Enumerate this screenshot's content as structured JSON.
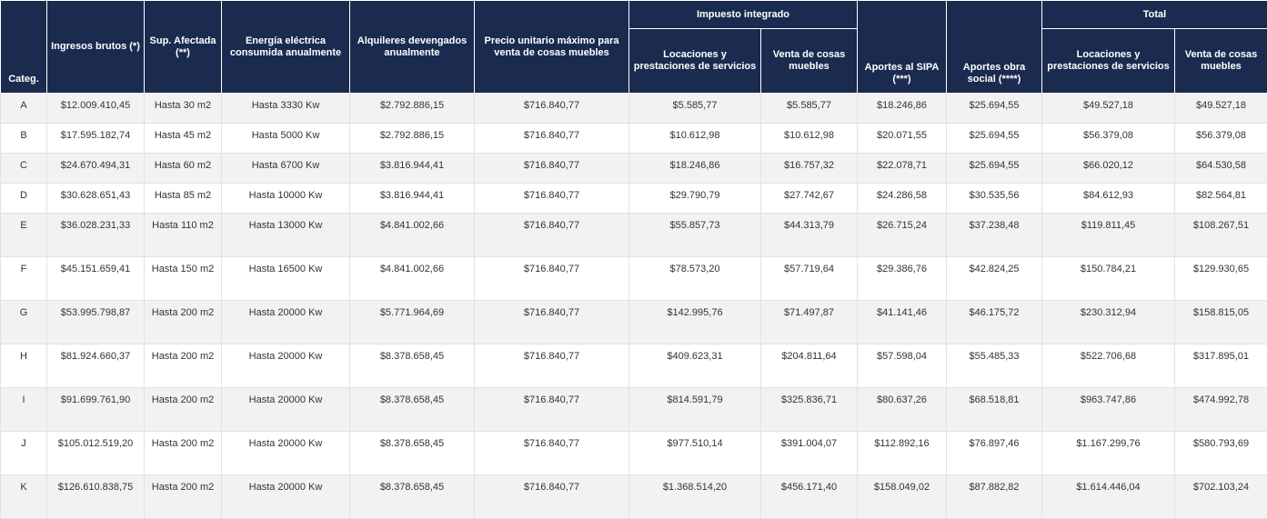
{
  "headers": {
    "categ": "Categ.",
    "ingresos": "Ingresos brutos (*)",
    "superficie": "Sup. Afectada (**)",
    "energia": "Energía eléctrica consumida anualmente",
    "alquileres": "Alquileres devengados anualmente",
    "precio": "Precio unitario máximo para venta de cosas muebles",
    "impuesto_group": "Impuesto integrado",
    "imp_locaciones": "Locaciones y prestaciones de servicios",
    "imp_venta": "Venta de cosas muebles",
    "sipa": "Aportes al SIPA (***)",
    "obra_social": "Aportes obra social (****)",
    "total_group": "Total",
    "total_locaciones": "Locaciones y prestaciones de servicios",
    "total_venta": "Venta de cosas muebles"
  },
  "rows": [
    {
      "cat": "A",
      "ingresos": "$12.009.410,45",
      "sup": "Hasta 30 m2",
      "energia": "Hasta 3330 Kw",
      "alquileres": "$2.792.886,15",
      "precio": "$716.840,77",
      "imp_loc": "$5.585,77",
      "imp_venta": "$5.585,77",
      "sipa": "$18.246,86",
      "obra": "$25.694,55",
      "tot_loc": "$49.527,18",
      "tot_venta": "$49.527,18"
    },
    {
      "cat": "B",
      "ingresos": "$17.595.182,74",
      "sup": "Hasta 45 m2",
      "energia": "Hasta 5000 Kw",
      "alquileres": "$2.792.886,15",
      "precio": "$716.840,77",
      "imp_loc": "$10.612,98",
      "imp_venta": "$10.612,98",
      "sipa": "$20.071,55",
      "obra": "$25.694,55",
      "tot_loc": "$56.379,08",
      "tot_venta": "$56.379,08"
    },
    {
      "cat": "C",
      "ingresos": "$24.670.494,31",
      "sup": "Hasta 60 m2",
      "energia": "Hasta 6700 Kw",
      "alquileres": "$3.816.944,41",
      "precio": "$716.840,77",
      "imp_loc": "$18.246,86",
      "imp_venta": "$16.757,32",
      "sipa": "$22.078,71",
      "obra": "$25.694,55",
      "tot_loc": "$66.020,12",
      "tot_venta": "$64.530,58"
    },
    {
      "cat": "D",
      "ingresos": "$30.628.651,43",
      "sup": "Hasta 85 m2",
      "energia": "Hasta 10000 Kw",
      "alquileres": "$3.816.944,41",
      "precio": "$716.840,77",
      "imp_loc": "$29.790,79",
      "imp_venta": "$27.742,67",
      "sipa": "$24.286,58",
      "obra": "$30.535,56",
      "tot_loc": "$84.612,93",
      "tot_venta": "$82.564,81"
    },
    {
      "cat": "E",
      "ingresos": "$36.028.231,33",
      "sup": "Hasta 110 m2",
      "energia": "Hasta 13000 Kw",
      "alquileres": "$4.841.002,66",
      "precio": "$716.840,77",
      "imp_loc": "$55.857,73",
      "imp_venta": "$44.313,79",
      "sipa": "$26.715,24",
      "obra": "$37.238,48",
      "tot_loc": "$119.811,45",
      "tot_venta": "$108.267,51"
    },
    {
      "cat": "F",
      "ingresos": "$45.151.659,41",
      "sup": "Hasta 150 m2",
      "energia": "Hasta 16500 Kw",
      "alquileres": "$4.841.002,66",
      "precio": "$716.840,77",
      "imp_loc": "$78.573,20",
      "imp_venta": "$57.719,64",
      "sipa": "$29.386,76",
      "obra": "$42.824,25",
      "tot_loc": "$150.784,21",
      "tot_venta": "$129.930,65"
    },
    {
      "cat": "G",
      "ingresos": "$53.995.798,87",
      "sup": "Hasta 200 m2",
      "energia": "Hasta 20000 Kw",
      "alquileres": "$5.771.964,69",
      "precio": "$716.840,77",
      "imp_loc": "$142.995,76",
      "imp_venta": "$71.497,87",
      "sipa": "$41.141,46",
      "obra": "$46.175,72",
      "tot_loc": "$230.312,94",
      "tot_venta": "$158.815,05"
    },
    {
      "cat": "H",
      "ingresos": "$81.924.660,37",
      "sup": "Hasta 200 m2",
      "energia": "Hasta 20000 Kw",
      "alquileres": "$8.378.658,45",
      "precio": "$716.840,77",
      "imp_loc": "$409.623,31",
      "imp_venta": "$204.811,64",
      "sipa": "$57.598,04",
      "obra": "$55.485,33",
      "tot_loc": "$522.706,68",
      "tot_venta": "$317.895,01"
    },
    {
      "cat": "I",
      "ingresos": "$91.699.761,90",
      "sup": "Hasta 200 m2",
      "energia": "Hasta 20000 Kw",
      "alquileres": "$8.378.658,45",
      "precio": "$716.840,77",
      "imp_loc": "$814.591,79",
      "imp_venta": "$325.836,71",
      "sipa": "$80.637,26",
      "obra": "$68.518,81",
      "tot_loc": "$963.747,86",
      "tot_venta": "$474.992,78"
    },
    {
      "cat": "J",
      "ingresos": "$105.012.519,20",
      "sup": "Hasta 200 m2",
      "energia": "Hasta 20000 Kw",
      "alquileres": "$8.378.658,45",
      "precio": "$716.840,77",
      "imp_loc": "$977.510,14",
      "imp_venta": "$391.004,07",
      "sipa": "$112.892,16",
      "obra": "$76.897,46",
      "tot_loc": "$1.167.299,76",
      "tot_venta": "$580.793,69"
    },
    {
      "cat": "K",
      "ingresos": "$126.610.838,75",
      "sup": "Hasta 200 m2",
      "energia": "Hasta 20000 Kw",
      "alquileres": "$8.378.658,45",
      "precio": "$716.840,77",
      "imp_loc": "$1.368.514,20",
      "imp_venta": "$456.171,40",
      "sipa": "$158.049,02",
      "obra": "$87.882,82",
      "tot_loc": "$1.614.446,04",
      "tot_venta": "$702.103,24"
    }
  ]
}
